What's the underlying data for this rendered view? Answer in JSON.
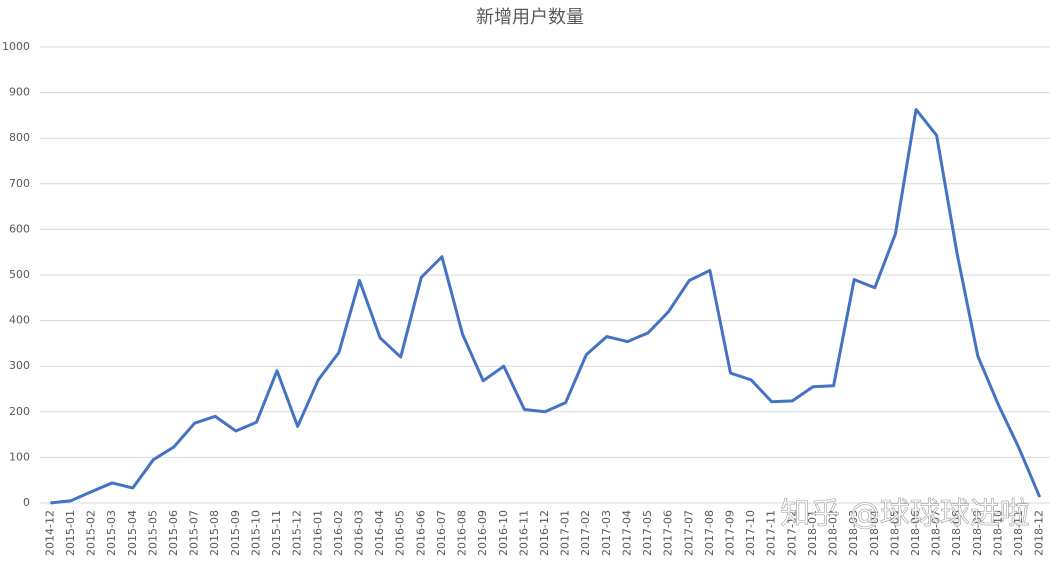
{
  "chart_data": {
    "type": "line",
    "title": "新增用户数量",
    "watermark": "知乎 @球球球进啦",
    "categories": [
      "2014-12",
      "2015-01",
      "2015-02",
      "2015-03",
      "2015-04",
      "2015-05",
      "2015-06",
      "2015-07",
      "2015-08",
      "2015-09",
      "2015-10",
      "2015-11",
      "2015-12",
      "2016-01",
      "2016-02",
      "2016-03",
      "2016-04",
      "2016-05",
      "2016-06",
      "2016-07",
      "2016-08",
      "2016-09",
      "2016-10",
      "2016-11",
      "2016-12",
      "2017-01",
      "2017-02",
      "2017-03",
      "2017-04",
      "2017-05",
      "2017-06",
      "2017-07",
      "2017-08",
      "2017-09",
      "2017-10",
      "2017-11",
      "2017-12",
      "2018-01",
      "2018-02",
      "2018-03",
      "2018-04",
      "2018-05",
      "2018-06",
      "2018-07",
      "2018-08",
      "2018-09",
      "2018-10",
      "2018-11",
      "2018-12"
    ],
    "values": [
      0,
      5,
      25,
      44,
      33,
      95,
      123,
      175,
      190,
      158,
      177,
      290,
      168,
      270,
      330,
      488,
      362,
      320,
      495,
      540,
      370,
      268,
      300,
      205,
      200,
      220,
      325,
      365,
      354,
      373,
      420,
      488,
      510,
      285,
      270,
      222,
      224,
      255,
      257,
      490,
      472,
      590,
      863,
      806,
      545,
      322,
      215,
      120,
      13
    ],
    "color": "#4472c4",
    "ylim": [
      0,
      1000
    ],
    "yticks": [
      0,
      100,
      200,
      300,
      400,
      500,
      600,
      700,
      800,
      900,
      1000
    ],
    "grid": true
  }
}
